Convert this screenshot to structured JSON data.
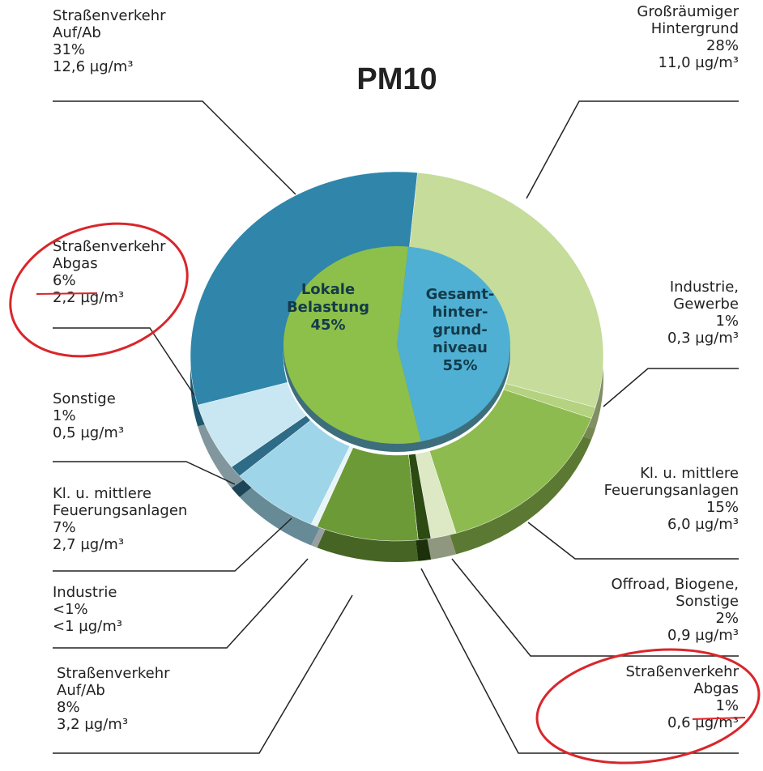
{
  "chart_data": {
    "type": "pie",
    "title": "PM10",
    "inner": {
      "labels": [
        [
          "Lokale",
          "Belastung"
        ],
        [
          "Gesamt-",
          "hinter-",
          "grund-",
          "niveau"
        ]
      ],
      "values": [
        45,
        55
      ],
      "value_labels": [
        "45%",
        "55%"
      ],
      "colors": [
        "#4fb0d3",
        "#8dc04a"
      ]
    },
    "outer": {
      "labels": [
        [
          "Großräumiger",
          "Hintergrund"
        ],
        [
          "Industrie,",
          "Gewerbe"
        ],
        [
          "Kl. u. mittlere",
          "Feuerungsanlagen"
        ],
        [
          "Offroad, Biogene,",
          "Sonstige"
        ],
        [
          "Straßenverkehr",
          "Abgas"
        ],
        [
          "Straßenverkehr",
          "Auf/Ab"
        ],
        [
          "Industrie"
        ],
        [
          "Kl. u. mittlere",
          "Feuerungsanlagen"
        ],
        [
          "Sonstige"
        ],
        [
          "Straßenverkehr",
          "Abgas"
        ],
        [
          "Straßenverkehr",
          "Auf/Ab"
        ]
      ],
      "values": [
        28,
        1,
        15,
        2,
        1,
        8,
        0.5,
        7,
        1,
        6,
        31
      ],
      "value_labels": [
        "28%",
        "1%",
        "15%",
        "2%",
        "1%",
        "8%",
        "<1%",
        "7%",
        "1%",
        "6%",
        "31%"
      ],
      "concentrations": [
        "11,0 µg/m³",
        "0,3 µg/m³",
        "6,0 µg/m³",
        "0,9 µg/m³",
        "0,6 µg/m³",
        "3,2 µg/m³",
        "<1 µg/m³",
        "2,7 µg/m³",
        "0,5 µg/m³",
        "2,2 µg/m³",
        "12,6 µg/m³"
      ],
      "colors": [
        "#c5dc9a",
        "#b4d27f",
        "#8dbb4f",
        "#dde8c4",
        "#2c4a12",
        "#6c9a36",
        "#e8f4f8",
        "#9fd5e8",
        "#2d6b86",
        "#c8e7f2",
        "#2f86aa"
      ]
    }
  }
}
